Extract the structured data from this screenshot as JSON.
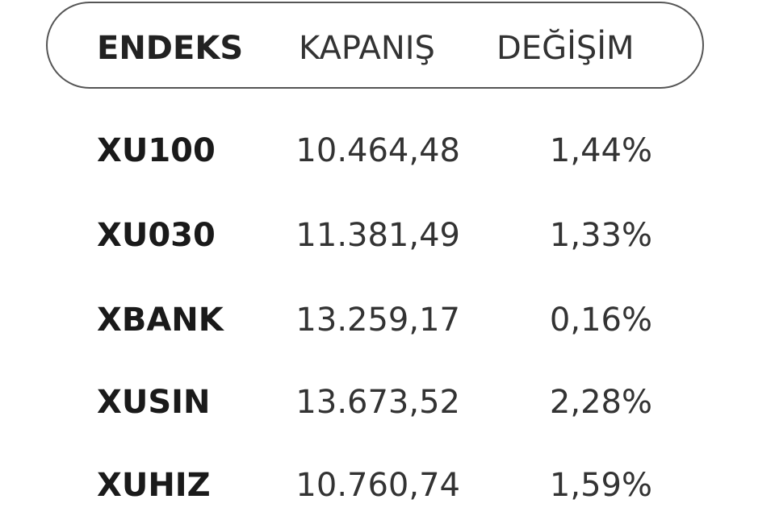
{
  "headers": {
    "index": "ENDEKS",
    "close": "KAPANIŞ",
    "change": "DEĞİŞİM"
  },
  "rows": [
    {
      "index": "XU100",
      "close": "10.464,48",
      "change": "1,44%"
    },
    {
      "index": "XU030",
      "close": "11.381,49",
      "change": "1,33%"
    },
    {
      "index": "XBANK",
      "close": "13.259,17",
      "change": "0,16%"
    },
    {
      "index": "XUSIN",
      "close": "13.673,52",
      "change": "2,28%"
    },
    {
      "index": "XUHIZ",
      "close": "10.760,74",
      "change": "1,59%"
    }
  ]
}
